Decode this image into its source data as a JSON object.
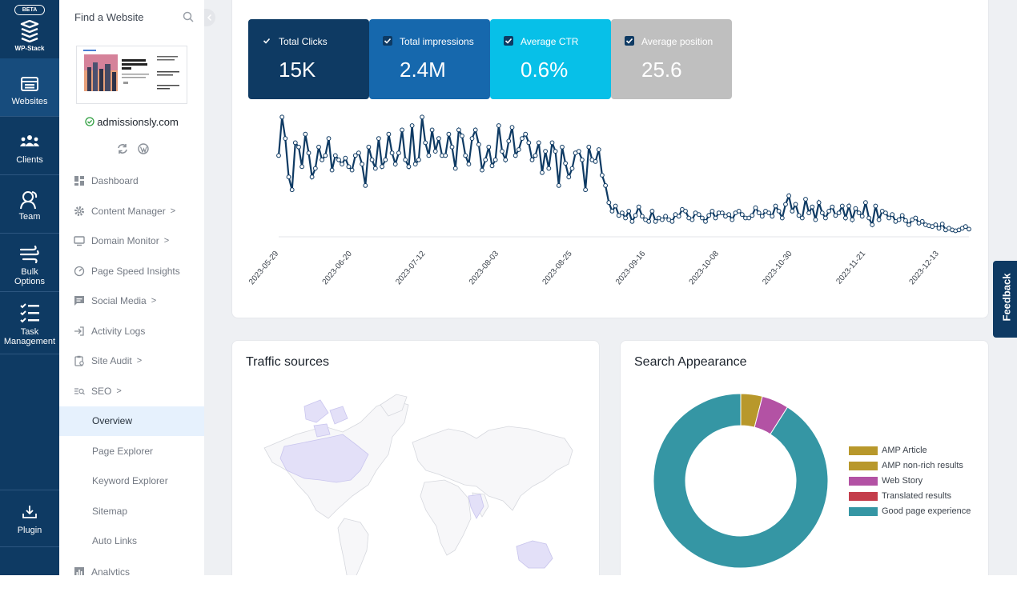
{
  "rail": {
    "beta": "BETA",
    "brand": "WP-Stack",
    "items": [
      {
        "label": "Websites",
        "icon": "websites-icon"
      },
      {
        "label": "Clients",
        "icon": "clients-icon"
      },
      {
        "label": "Team",
        "icon": "team-icon"
      },
      {
        "label1": "Bulk",
        "label2": "Options",
        "icon": "bulk-options-icon"
      },
      {
        "label1": "Task",
        "label2": "Management",
        "icon": "task-management-icon"
      },
      {
        "label": "Plugin",
        "icon": "download-icon"
      }
    ]
  },
  "sidebar": {
    "find_placeholder": "Find a Website",
    "site": "admissionsly.com",
    "nav": [
      {
        "label": "Dashboard",
        "icon": "dashboard-icon"
      },
      {
        "label": "Content Manager",
        "icon": "gear-icon",
        "chevron": ">"
      },
      {
        "label": "Domain Monitor",
        "icon": "monitor-icon",
        "chevron": ">"
      },
      {
        "label": "Page Speed Insights",
        "icon": "speed-icon"
      },
      {
        "label": "Social Media",
        "icon": "chat-icon",
        "chevron": ">"
      },
      {
        "label": "Activity Logs",
        "icon": "login-icon"
      },
      {
        "label": "Site Audit",
        "icon": "clipboard-icon",
        "chevron": ">"
      },
      {
        "label": "SEO",
        "icon": "seo-icon",
        "chevron": ">"
      }
    ],
    "seo_sub": [
      "Overview",
      "Page Explorer",
      "Keyword Explorer",
      "Sitemap",
      "Auto Links"
    ],
    "next_item": "Analytics"
  },
  "metrics": [
    {
      "label": "Total Clicks",
      "value": "15K",
      "bg": "#0e3a63"
    },
    {
      "label": "Total impressions",
      "value": "2.4M",
      "bg": "#1668ad"
    },
    {
      "label": "Average CTR",
      "value": "0.6%",
      "bg": "#07c0e8"
    },
    {
      "label": "Average position",
      "value": "25.6",
      "bg": "#bfbfbf"
    }
  ],
  "chart_data": {
    "type": "line",
    "x_tick_labels": [
      "2023-05-29",
      "2023-06-20",
      "2023-07-12",
      "2023-08-03",
      "2023-08-25",
      "2023-09-16",
      "2023-10-08",
      "2023-10-30",
      "2023-11-21",
      "2023-12-13"
    ],
    "x_start": "2023-05-29",
    "series": [
      {
        "color": "#0e3a63",
        "values": [
          95,
          140,
          115,
          70,
          55,
          110,
          105,
          82,
          120,
          98,
          70,
          80,
          105,
          90,
          95,
          115,
          78,
          95,
          90,
          85,
          92,
          82,
          78,
          95,
          98,
          85,
          60,
          105,
          90,
          80,
          115,
          82,
          90,
          120,
          98,
          85,
          98,
          125,
          90,
          82,
          130,
          85,
          90,
          140,
          110,
          95,
          125,
          100,
          115,
          95,
          95,
          120,
          105,
          80,
          125,
          118,
          95,
          85,
          115,
          125,
          108,
          78,
          90,
          105,
          83,
          90,
          130,
          100,
          90,
          112,
          128,
          95,
          102,
          115,
          120,
          110,
          90,
          95,
          110,
          75,
          100,
          80,
          110,
          100,
          60,
          105,
          86,
          70,
          80,
          98,
          100,
          90,
          55,
          105,
          90,
          88,
          102,
          72,
          60,
          40,
          30,
          36,
          25,
          28,
          22,
          30,
          18,
          25,
          35,
          24,
          20,
          18,
          30,
          18,
          22,
          20,
          24,
          20,
          18,
          26,
          24,
          32,
          30,
          22,
          20,
          28,
          26,
          22,
          18,
          25,
          30,
          22,
          28,
          28,
          24,
          26,
          20,
          28,
          30,
          26,
          22,
          22,
          25,
          34,
          28,
          24,
          30,
          28,
          24,
          36,
          30,
          22,
          38,
          48,
          30,
          38,
          25,
          22,
          44,
          28,
          35,
          20,
          40,
          28,
          22,
          30,
          35,
          25,
          28,
          36,
          22,
          36,
          20,
          33,
          28,
          24,
          40,
          22,
          14,
          36,
          20,
          30,
          28,
          22,
          26,
          18,
          20,
          25,
          19,
          14,
          20,
          22,
          16,
          18,
          14,
          13,
          12,
          14,
          10,
          15,
          8,
          10,
          8,
          7,
          8,
          10,
          12,
          9
        ]
      }
    ]
  },
  "traffic": {
    "title": "Traffic sources"
  },
  "search": {
    "title": "Search Appearance",
    "chart_data": {
      "type": "pie",
      "categories": [
        "AMP Article",
        "AMP non-rich results",
        "Web Story",
        "Translated results",
        "Good page experience"
      ],
      "values": [
        4,
        0,
        5,
        0,
        91
      ],
      "colors": [
        "#b8982b",
        "#b8982b",
        "#b352a4",
        "#c43d4b",
        "#3596a4"
      ]
    }
  },
  "feedback": "Feedback"
}
